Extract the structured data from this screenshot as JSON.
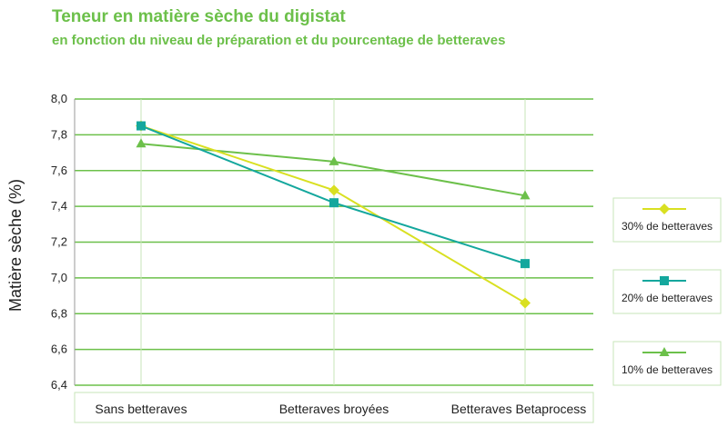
{
  "chart_data": {
    "type": "line",
    "title": "Teneur en matière sèche du digistat",
    "subtitle": "en fonction du niveau de préparation et du pourcentage de betteraves",
    "ylabel": "Matière sèche (%)",
    "xlabel": "",
    "categories": [
      "Sans betteraves",
      "Betteraves broyées",
      "Betteraves Betaprocess"
    ],
    "ylim": [
      6.4,
      8.0
    ],
    "yticks": [
      "6,4",
      "6,6",
      "6,8",
      "7,0",
      "7,2",
      "7,4",
      "7,6",
      "7,8",
      "8,0"
    ],
    "grid": true,
    "legend_position": "right",
    "series": [
      {
        "name": "30% de betteraves",
        "values": [
          7.85,
          7.49,
          6.86
        ],
        "color": "#d9e021",
        "marker": "diamond"
      },
      {
        "name": "20% de betteraves",
        "values": [
          7.85,
          7.42,
          7.08
        ],
        "color": "#14a79d",
        "marker": "square"
      },
      {
        "name": "10% de betteraves",
        "values": [
          7.75,
          7.65,
          7.46
        ],
        "color": "#6cc04a",
        "marker": "triangle"
      }
    ],
    "colors": {
      "grid": "#6cc04a",
      "frame": "#c7e6b8",
      "axis": "#9a9a9a"
    }
  }
}
